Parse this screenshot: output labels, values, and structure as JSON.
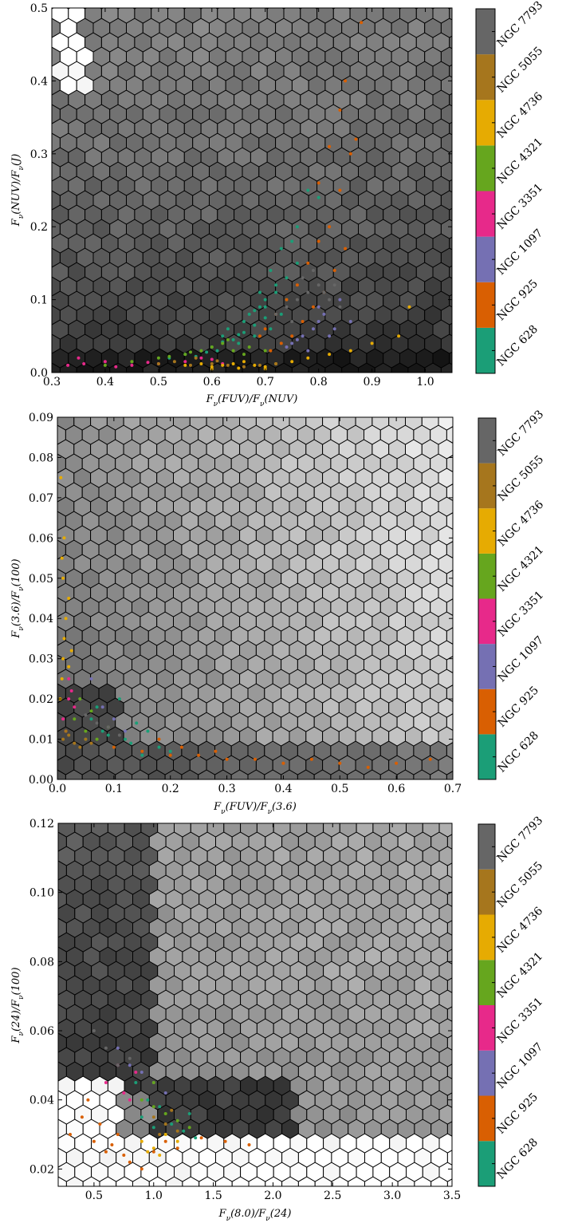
{
  "legend": {
    "galaxies": [
      "NGC 628",
      "NGC 925",
      "NGC 1097",
      "NGC 3351",
      "NGC 4321",
      "NGC 4736",
      "NGC 5055",
      "NGC 7793"
    ],
    "colors": [
      "#1b9e77",
      "#d95f02",
      "#7570b3",
      "#e7298a",
      "#66a61e",
      "#e6ab02",
      "#a6761d",
      "#666666"
    ]
  },
  "chart_data": [
    {
      "type": "scatter",
      "background": "hexbin",
      "xlabel": "F_ν(FUV)/F_ν(NUV)",
      "ylabel": "F_ν(NUV)/F_ν(J)",
      "xlim": [
        0.3,
        1.05
      ],
      "ylim": [
        0.0,
        0.5
      ],
      "xticks": [
        0.3,
        0.4,
        0.5,
        0.6,
        0.7,
        0.8,
        0.9,
        1.0
      ],
      "xtick_labels": [
        "0.3",
        "0.4",
        "0.5",
        "0.6",
        "0.7",
        "0.8",
        "0.9",
        "1.0"
      ],
      "yticks": [
        0.0,
        0.1,
        0.2,
        0.3,
        0.4,
        0.5
      ],
      "ytick_labels": [
        "0.0",
        "0.1",
        "0.2",
        "0.3",
        "0.4",
        "0.5"
      ],
      "series": [
        {
          "name": "NGC 628",
          "x": [
            0.52,
            0.55,
            0.58,
            0.6,
            0.62,
            0.63,
            0.65,
            0.66,
            0.67,
            0.68,
            0.69,
            0.7,
            0.71,
            0.72,
            0.73,
            0.74,
            0.64,
            0.66,
            0.68,
            0.7,
            0.72,
            0.74,
            0.76,
            0.61,
            0.59,
            0.57,
            0.62,
            0.65,
            0.69,
            0.71,
            0.73,
            0.76,
            0.8,
            0.7,
            0.68,
            0.75,
            0.78
          ],
          "y": [
            0.02,
            0.025,
            0.03,
            0.035,
            0.05,
            0.06,
            0.04,
            0.07,
            0.08,
            0.05,
            0.09,
            0.1,
            0.06,
            0.12,
            0.08,
            0.1,
            0.045,
            0.055,
            0.065,
            0.075,
            0.11,
            0.13,
            0.15,
            0.03,
            0.028,
            0.022,
            0.042,
            0.052,
            0.11,
            0.14,
            0.17,
            0.2,
            0.24,
            0.09,
            0.085,
            0.18,
            0.25
          ]
        },
        {
          "name": "NGC 925",
          "x": [
            0.7,
            0.72,
            0.74,
            0.76,
            0.78,
            0.8,
            0.82,
            0.84,
            0.86,
            0.75,
            0.77,
            0.79,
            0.81,
            0.83,
            0.85,
            0.73,
            0.8,
            0.82,
            0.84,
            0.85,
            0.87,
            0.88,
            0.71,
            0.69
          ],
          "y": [
            0.06,
            0.08,
            0.1,
            0.12,
            0.15,
            0.18,
            0.2,
            0.25,
            0.3,
            0.05,
            0.07,
            0.09,
            0.11,
            0.14,
            0.17,
            0.04,
            0.26,
            0.31,
            0.36,
            0.4,
            0.32,
            0.48,
            0.03,
            0.05
          ]
        },
        {
          "name": "NGC 1097",
          "x": [
            0.75,
            0.77,
            0.79,
            0.8,
            0.81,
            0.82,
            0.83,
            0.78,
            0.76,
            0.74,
            0.8,
            0.84,
            0.86
          ],
          "y": [
            0.04,
            0.05,
            0.06,
            0.07,
            0.08,
            0.05,
            0.06,
            0.03,
            0.045,
            0.035,
            0.09,
            0.1,
            0.07
          ]
        },
        {
          "name": "NGC 3351",
          "x": [
            0.33,
            0.36,
            0.4,
            0.45,
            0.5,
            0.55,
            0.58,
            0.6,
            0.62,
            0.35,
            0.42,
            0.48
          ],
          "y": [
            0.01,
            0.012,
            0.015,
            0.01,
            0.012,
            0.015,
            0.02,
            0.018,
            0.012,
            0.02,
            0.008,
            0.014
          ]
        },
        {
          "name": "NGC 4321",
          "x": [
            0.45,
            0.5,
            0.55,
            0.58,
            0.6,
            0.62,
            0.64,
            0.66,
            0.4,
            0.52,
            0.56,
            0.63,
            0.67,
            0.7
          ],
          "y": [
            0.015,
            0.02,
            0.025,
            0.03,
            0.035,
            0.04,
            0.03,
            0.025,
            0.01,
            0.022,
            0.028,
            0.045,
            0.035,
            0.03
          ]
        },
        {
          "name": "NGC 4736",
          "x": [
            0.55,
            0.58,
            0.6,
            0.62,
            0.64,
            0.66,
            0.68,
            0.7,
            0.72,
            0.75,
            0.78,
            0.82,
            0.86,
            0.9,
            0.95,
            0.97,
            0.6,
            0.65,
            0.7
          ],
          "y": [
            0.01,
            0.012,
            0.008,
            0.01,
            0.012,
            0.015,
            0.01,
            0.008,
            0.012,
            0.015,
            0.02,
            0.025,
            0.03,
            0.04,
            0.05,
            0.09,
            0.005,
            0.006,
            0.005
          ]
        },
        {
          "name": "NGC 5055",
          "x": [
            0.5,
            0.53,
            0.56,
            0.6,
            0.63,
            0.66,
            0.69,
            0.72,
            0.57,
            0.61
          ],
          "y": [
            0.012,
            0.015,
            0.01,
            0.012,
            0.01,
            0.008,
            0.01,
            0.012,
            0.02,
            0.016
          ]
        },
        {
          "name": "NGC 7793",
          "x": [
            0.72,
            0.74,
            0.76,
            0.78,
            0.8,
            0.82,
            0.84,
            0.77,
            0.79,
            0.81,
            0.83,
            0.75
          ],
          "y": [
            0.08,
            0.09,
            0.1,
            0.11,
            0.12,
            0.1,
            0.09,
            0.13,
            0.14,
            0.11,
            0.12,
            0.07
          ]
        }
      ]
    },
    {
      "type": "scatter",
      "background": "hexbin",
      "xlabel": "F_ν(FUV)/F_ν(3.6)",
      "ylabel": "F_ν(3.6)/F_ν(100)",
      "xlim": [
        0.0,
        0.7
      ],
      "ylim": [
        0.0,
        0.09
      ],
      "xticks": [
        0.0,
        0.1,
        0.2,
        0.3,
        0.4,
        0.5,
        0.6,
        0.7
      ],
      "xtick_labels": [
        "0.0",
        "0.1",
        "0.2",
        "0.3",
        "0.4",
        "0.5",
        "0.6",
        "0.7"
      ],
      "yticks": [
        0.0,
        0.01,
        0.02,
        0.03,
        0.04,
        0.05,
        0.06,
        0.07,
        0.08,
        0.09
      ],
      "ytick_labels": [
        "0.00",
        "0.01",
        "0.02",
        "0.03",
        "0.04",
        "0.05",
        "0.06",
        "0.07",
        "0.08",
        "0.09"
      ],
      "series": [
        {
          "name": "NGC 628",
          "x": [
            0.05,
            0.08,
            0.1,
            0.12,
            0.15,
            0.18,
            0.2,
            0.06,
            0.09,
            0.13,
            0.16,
            0.11,
            0.07,
            0.14
          ],
          "y": [
            0.01,
            0.012,
            0.008,
            0.01,
            0.006,
            0.008,
            0.007,
            0.015,
            0.011,
            0.009,
            0.012,
            0.02,
            0.018,
            0.014
          ]
        },
        {
          "name": "NGC 925",
          "x": [
            0.1,
            0.15,
            0.2,
            0.25,
            0.3,
            0.35,
            0.4,
            0.45,
            0.5,
            0.55,
            0.6,
            0.66,
            0.18,
            0.22,
            0.28
          ],
          "y": [
            0.008,
            0.007,
            0.006,
            0.006,
            0.005,
            0.005,
            0.004,
            0.005,
            0.004,
            0.003,
            0.004,
            0.005,
            0.01,
            0.008,
            0.007
          ]
        },
        {
          "name": "NGC 1097",
          "x": [
            0.04,
            0.06,
            0.08,
            0.1,
            0.12
          ],
          "y": [
            0.02,
            0.025,
            0.018,
            0.015,
            0.012
          ]
        },
        {
          "name": "NGC 3351",
          "x": [
            0.01,
            0.02,
            0.03,
            0.02,
            0.015,
            0.025
          ],
          "y": [
            0.015,
            0.02,
            0.018,
            0.025,
            0.012,
            0.022
          ]
        },
        {
          "name": "NGC 4321",
          "x": [
            0.03,
            0.05,
            0.07,
            0.04,
            0.06,
            0.09
          ],
          "y": [
            0.015,
            0.012,
            0.01,
            0.02,
            0.017,
            0.013
          ]
        },
        {
          "name": "NGC 4736",
          "x": [
            0.005,
            0.008,
            0.01,
            0.012,
            0.015,
            0.02,
            0.01,
            0.008,
            0.012,
            0.006,
            0.02,
            0.025
          ],
          "y": [
            0.02,
            0.025,
            0.03,
            0.035,
            0.04,
            0.045,
            0.05,
            0.055,
            0.06,
            0.075,
            0.028,
            0.032
          ]
        },
        {
          "name": "NGC 5055",
          "x": [
            0.01,
            0.015,
            0.02,
            0.03,
            0.04,
            0.05,
            0.06
          ],
          "y": [
            0.01,
            0.012,
            0.011,
            0.009,
            0.008,
            0.01,
            0.009
          ]
        },
        {
          "name": "NGC 7793",
          "x": [
            0.05,
            0.07,
            0.09,
            0.11
          ],
          "y": [
            0.016,
            0.014,
            0.013,
            0.011
          ]
        }
      ]
    },
    {
      "type": "scatter",
      "background": "hexbin",
      "xlabel": "F_ν(8.0)/F_ν(24)",
      "ylabel": "F_ν(24)/F_ν(100)",
      "xlim": [
        0.2,
        3.5
      ],
      "ylim": [
        0.015,
        0.12
      ],
      "xticks": [
        0.5,
        1.0,
        1.5,
        2.0,
        2.5,
        3.0,
        3.5
      ],
      "xtick_labels": [
        "0.5",
        "1.0",
        "1.5",
        "2.0",
        "2.5",
        "3.0",
        "3.5"
      ],
      "yticks": [
        0.02,
        0.04,
        0.06,
        0.08,
        0.1,
        0.12
      ],
      "ytick_labels": [
        "0.02",
        "0.04",
        "0.06",
        "0.08",
        "0.10",
        "0.12"
      ],
      "series": [
        {
          "name": "NGC 628",
          "x": [
            0.9,
            1.0,
            1.1,
            1.2,
            1.3,
            0.95,
            1.05,
            1.15,
            1.25,
            0.85,
            1.35
          ],
          "y": [
            0.035,
            0.032,
            0.03,
            0.034,
            0.036,
            0.04,
            0.038,
            0.033,
            0.031,
            0.045,
            0.029
          ]
        },
        {
          "name": "NGC 925",
          "x": [
            0.3,
            0.4,
            0.5,
            0.6,
            0.7,
            0.8,
            0.9,
            1.0,
            0.45,
            0.55,
            0.65,
            0.75,
            1.1,
            1.2,
            1.4,
            1.6,
            1.8
          ],
          "y": [
            0.03,
            0.035,
            0.028,
            0.025,
            0.03,
            0.022,
            0.02,
            0.025,
            0.04,
            0.033,
            0.027,
            0.024,
            0.028,
            0.026,
            0.029,
            0.028,
            0.027
          ]
        },
        {
          "name": "NGC 1097",
          "x": [
            0.8,
            0.9,
            1.0,
            1.1,
            0.7
          ],
          "y": [
            0.05,
            0.048,
            0.045,
            0.042,
            0.055
          ]
        },
        {
          "name": "NGC 3351",
          "x": [
            0.6,
            0.7,
            0.75,
            0.8,
            0.85
          ],
          "y": [
            0.045,
            0.05,
            0.042,
            0.04,
            0.048
          ]
        },
        {
          "name": "NGC 4321",
          "x": [
            0.9,
            1.0,
            1.1,
            1.2,
            1.3,
            1.0
          ],
          "y": [
            0.04,
            0.038,
            0.036,
            0.034,
            0.032,
            0.045
          ]
        },
        {
          "name": "NGC 4736",
          "x": [
            0.9,
            1.0,
            1.1,
            1.2,
            0.95,
            1.05
          ],
          "y": [
            0.028,
            0.026,
            0.03,
            0.028,
            0.025,
            0.024
          ]
        },
        {
          "name": "NGC 5055",
          "x": [
            1.0,
            1.1,
            1.2,
            1.05,
            1.15
          ],
          "y": [
            0.035,
            0.033,
            0.031,
            0.03,
            0.037
          ]
        },
        {
          "name": "NGC 7793",
          "x": [
            0.5,
            0.6,
            0.7,
            0.8
          ],
          "y": [
            0.06,
            0.055,
            0.05,
            0.052
          ]
        }
      ]
    }
  ]
}
